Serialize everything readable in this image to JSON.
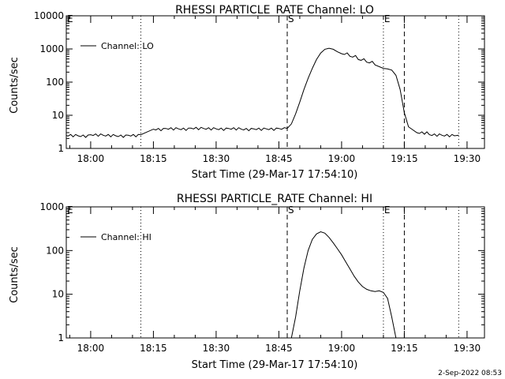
{
  "footer_date": "2-Sep-2022 08:53",
  "chart_data": [
    {
      "type": "line",
      "title": "RHESSI PARTICLE_RATE Channel: LO",
      "xlabel": "Start Time (29-Mar-17 17:54:10)",
      "ylabel": "Counts/sec",
      "yscale": "log",
      "ylim": [
        1,
        10000
      ],
      "yticks": [
        1,
        10,
        100,
        1000,
        10000
      ],
      "ytick_labels": [
        "1",
        "10",
        "100",
        "1000",
        "10000"
      ],
      "xlim": [
        "17:54:10",
        "19:34:10"
      ],
      "xticks": [
        "18:00",
        "18:15",
        "18:30",
        "18:45",
        "19:00",
        "19:15",
        "19:30"
      ],
      "grid": false,
      "legend": "top-left",
      "series": [
        {
          "name": "Channel: LO",
          "x": [
            "17:54",
            "17:57",
            "18:00",
            "18:03",
            "18:06",
            "18:09",
            "18:12",
            "18:15",
            "18:18",
            "18:21",
            "18:24",
            "18:27",
            "18:30",
            "18:33",
            "18:36",
            "18:39",
            "18:42",
            "18:45",
            "18:47",
            "18:48",
            "18:49",
            "18:50",
            "18:51",
            "18:52",
            "18:53",
            "18:54",
            "18:55",
            "18:56",
            "18:57",
            "18:58",
            "18:59",
            "19:00",
            "19:02",
            "19:04",
            "19:06",
            "19:08",
            "19:10",
            "19:11",
            "19:12",
            "19:13",
            "19:14",
            "19:15",
            "19:16",
            "19:18",
            "19:21",
            "19:24",
            "19:27",
            "19:28"
          ],
          "values": [
            2.5,
            2.4,
            2.6,
            2.5,
            2.4,
            2.5,
            2.6,
            3.8,
            4.0,
            3.9,
            4.1,
            4.0,
            3.9,
            4.0,
            3.8,
            3.9,
            3.9,
            4.0,
            4.0,
            5.5,
            11,
            25,
            60,
            130,
            260,
            480,
            750,
            980,
            1050,
            980,
            820,
            720,
            600,
            480,
            400,
            330,
            260,
            250,
            230,
            160,
            60,
            12,
            4.5,
            3.0,
            2.6,
            2.5,
            2.4,
            2.5
          ]
        }
      ],
      "markers": [
        {
          "time": "18:12",
          "style": "dotted",
          "label": ""
        },
        {
          "time": "18:47",
          "style": "dashed",
          "label": "S"
        },
        {
          "time": "19:10",
          "style": "dotted",
          "label": "E"
        },
        {
          "time": "19:15",
          "style": "dashed",
          "label": ""
        },
        {
          "time": "19:28",
          "style": "dotted",
          "label": ""
        }
      ],
      "corner_label": "E"
    },
    {
      "type": "line",
      "title": "RHESSI PARTICLE_RATE Channel: HI",
      "xlabel": "Start Time (29-Mar-17 17:54:10)",
      "ylabel": "Counts/sec",
      "yscale": "log",
      "ylim": [
        1,
        1000
      ],
      "yticks": [
        1,
        10,
        100,
        1000
      ],
      "ytick_labels": [
        "1",
        "10",
        "100",
        "1000"
      ],
      "xlim": [
        "17:54:10",
        "19:34:10"
      ],
      "xticks": [
        "18:00",
        "18:15",
        "18:30",
        "18:45",
        "19:00",
        "19:15",
        "19:30"
      ],
      "grid": false,
      "legend": "top-left",
      "series": [
        {
          "name": "Channel: HI",
          "x": [
            "18:48",
            "18:49",
            "18:50",
            "18:51",
            "18:52",
            "18:53",
            "18:54",
            "18:55",
            "18:56",
            "18:57",
            "18:58",
            "18:59",
            "19:00",
            "19:01",
            "19:02",
            "19:03",
            "19:04",
            "19:05",
            "19:06",
            "19:07",
            "19:08",
            "19:09",
            "19:10",
            "19:11",
            "19:12",
            "19:13"
          ],
          "values": [
            1.0,
            3,
            12,
            40,
            100,
            180,
            240,
            270,
            250,
            200,
            150,
            110,
            80,
            55,
            38,
            26,
            19,
            15,
            13,
            12,
            11.5,
            12,
            11,
            8,
            3,
            1.0
          ]
        }
      ],
      "markers": [
        {
          "time": "18:12",
          "style": "dotted",
          "label": ""
        },
        {
          "time": "18:47",
          "style": "dashed",
          "label": "S"
        },
        {
          "time": "19:10",
          "style": "dotted",
          "label": "E"
        },
        {
          "time": "19:15",
          "style": "dashed",
          "label": ""
        },
        {
          "time": "19:28",
          "style": "dotted",
          "label": ""
        }
      ],
      "corner_label": "E"
    }
  ]
}
